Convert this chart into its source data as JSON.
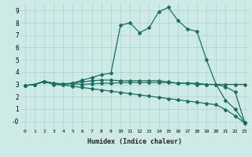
{
  "xlabel": "Humidex (Indice chaleur)",
  "bg_color": "#ceeae7",
  "grid_color": "#aad4d0",
  "line_color": "#1a6e62",
  "xlim": [
    -0.5,
    23.5
  ],
  "ylim": [
    -0.6,
    9.6
  ],
  "ytick_vals": [
    0,
    1,
    2,
    3,
    4,
    5,
    6,
    7,
    8,
    9
  ],
  "ytick_labels": [
    "-0",
    "1",
    "2",
    "3",
    "4",
    "5",
    "6",
    "7",
    "8",
    "9"
  ],
  "xtick_vals": [
    0,
    1,
    2,
    3,
    4,
    5,
    6,
    7,
    8,
    9,
    10,
    11,
    12,
    13,
    14,
    15,
    16,
    17,
    18,
    19,
    20,
    21,
    22,
    23
  ],
  "line1_x": [
    0,
    1,
    2,
    3,
    4,
    5,
    6,
    7,
    8,
    9,
    10,
    11,
    12,
    13,
    14,
    15,
    16,
    17,
    18,
    19,
    20,
    21,
    22,
    23
  ],
  "line1_y": [
    2.9,
    3.0,
    3.25,
    3.1,
    3.0,
    3.1,
    3.35,
    3.55,
    3.8,
    3.9,
    7.8,
    8.0,
    7.2,
    7.6,
    8.9,
    9.25,
    8.2,
    7.5,
    7.3,
    5.0,
    3.0,
    3.0,
    3.0,
    3.0
  ],
  "line2_x": [
    0,
    1,
    2,
    3,
    4,
    5,
    6,
    7,
    8,
    9,
    10,
    11,
    12,
    13,
    14,
    15,
    16,
    17,
    18,
    19,
    20,
    21,
    22,
    23
  ],
  "line2_y": [
    2.9,
    3.0,
    3.25,
    3.1,
    3.05,
    3.05,
    3.0,
    3.05,
    3.1,
    3.1,
    3.15,
    3.15,
    3.15,
    3.15,
    3.15,
    3.15,
    3.1,
    3.1,
    3.1,
    3.0,
    3.0,
    1.7,
    1.0,
    -0.1
  ],
  "line3_x": [
    0,
    1,
    2,
    3,
    4,
    5,
    6,
    7,
    8,
    9,
    10,
    11,
    12,
    13,
    14,
    15,
    16,
    17,
    18,
    19,
    20,
    21,
    22,
    23
  ],
  "line3_y": [
    2.9,
    3.0,
    3.25,
    3.0,
    2.95,
    2.85,
    2.75,
    2.65,
    2.55,
    2.45,
    2.35,
    2.25,
    2.15,
    2.05,
    1.95,
    1.85,
    1.75,
    1.65,
    1.55,
    1.45,
    1.35,
    0.95,
    0.45,
    -0.15
  ],
  "line4_x": [
    0,
    1,
    2,
    3,
    4,
    5,
    6,
    7,
    8,
    9,
    10,
    11,
    12,
    13,
    14,
    15,
    16,
    17,
    18,
    19,
    20,
    21,
    22,
    23
  ],
  "line4_y": [
    2.9,
    3.0,
    3.2,
    3.05,
    3.05,
    3.1,
    3.2,
    3.3,
    3.35,
    3.35,
    3.3,
    3.3,
    3.3,
    3.3,
    3.3,
    3.2,
    3.1,
    3.1,
    3.0,
    3.0,
    3.0,
    2.8,
    2.4,
    -0.1
  ]
}
